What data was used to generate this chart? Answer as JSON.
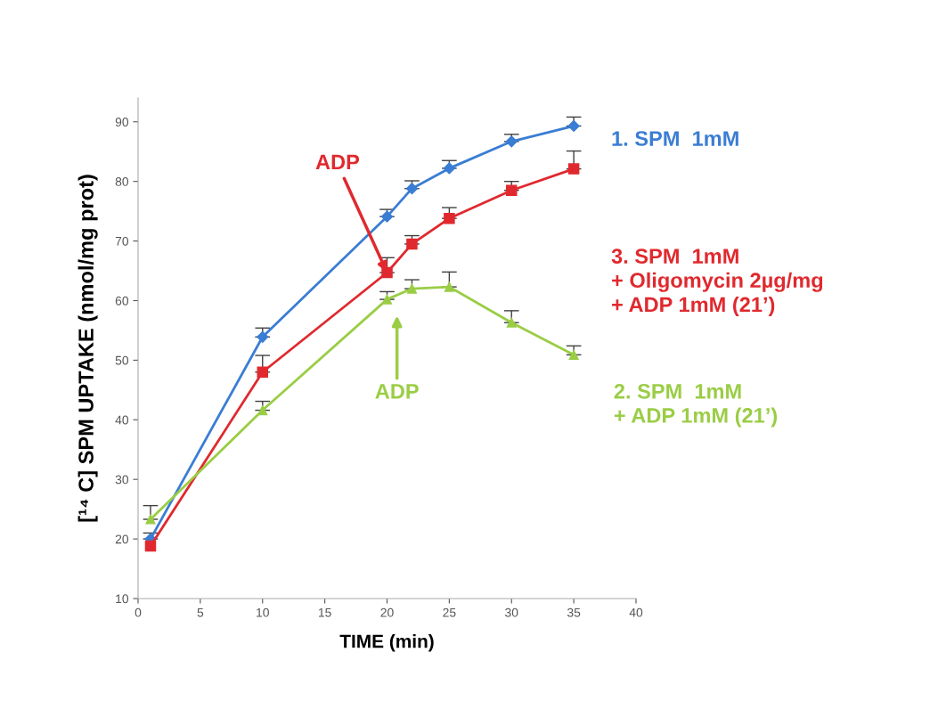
{
  "chart_data": {
    "type": "line",
    "xlabel": "TIME (min)",
    "ylabel": "[¹⁴ C] SPM UPTAKE (nmol/mg prot)",
    "x": [
      1,
      10,
      20,
      22,
      25,
      30,
      35
    ],
    "xlim": [
      0,
      40
    ],
    "xticks": [
      0,
      5,
      10,
      15,
      20,
      25,
      30,
      35,
      40
    ],
    "ylim": [
      10,
      94
    ],
    "yticks": [
      10,
      20,
      30,
      40,
      50,
      60,
      70,
      80,
      90
    ],
    "grid": false,
    "legend": false,
    "series": [
      {
        "name": "1. SPM  1mM",
        "color": "#3a7dd4",
        "marker": "diamond",
        "values": [
          20.0,
          53.9,
          74.1,
          78.8,
          82.2,
          86.7,
          89.3
        ],
        "errors": [
          [
            20.0,
            21.0
          ],
          [
            53.9,
            55.4
          ],
          [
            74.1,
            75.3
          ],
          [
            78.8,
            80.1
          ],
          [
            82.2,
            83.5
          ],
          [
            86.7,
            87.9
          ],
          [
            89.3,
            90.8
          ]
        ]
      },
      {
        "name": "3. SPM  1mM\n+ Oligomycin 2µg/mg\n+ ADP 1mM (21’)",
        "color": "#e0292e",
        "marker": "square",
        "values": [
          18.8,
          48.0,
          64.7,
          69.5,
          73.8,
          78.5,
          82.1
        ],
        "errors": [
          null,
          [
            48.0,
            50.8
          ],
          [
            64.7,
            67.2
          ],
          [
            69.5,
            70.9
          ],
          [
            73.8,
            75.6
          ],
          [
            78.5,
            80.0
          ],
          [
            82.1,
            85.1
          ]
        ]
      },
      {
        "name": "2. SPM  1mM\n+ ADP 1mM (21’)",
        "color": "#9acd45",
        "marker": "triangle",
        "values": [
          23.3,
          41.6,
          60.2,
          62.0,
          62.3,
          56.3,
          50.9
        ],
        "errors": [
          [
            23.3,
            25.6
          ],
          [
            41.6,
            43.1
          ],
          [
            60.2,
            61.5
          ],
          [
            62.0,
            63.5
          ],
          [
            62.3,
            64.8
          ],
          [
            56.3,
            58.3
          ],
          [
            50.9,
            52.4
          ]
        ]
      }
    ],
    "annotations": [
      {
        "text": "ADP",
        "x": 20,
        "y": 64.7
      },
      "ADP"
    ]
  }
}
